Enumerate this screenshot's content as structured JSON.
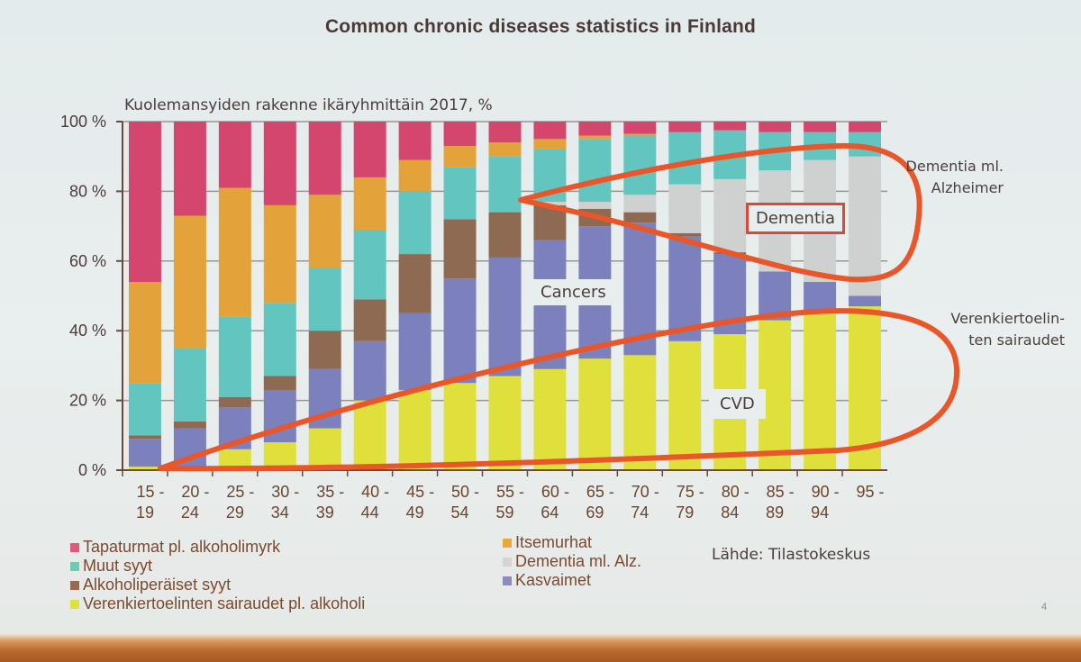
{
  "slide": {
    "title": "Common chronic diseases statistics in Finland",
    "page_number": "4",
    "source": "Lähde: Tilastokeskus"
  },
  "annotations": {
    "dementia_box": "Dementia",
    "cancers": "Cancers",
    "cvd": "CVD",
    "dementia_note_line1": "Dementia ml.",
    "dementia_note_line2": "Alzheimer",
    "cvd_note_line1": "Verenkiertoelin-",
    "cvd_note_line2": "ten sairaudet",
    "highlight_color": "#e8562a"
  },
  "chart_data": {
    "type": "bar",
    "stacked": true,
    "normalized": true,
    "title": "Kuolemansyiden rakenne ikäryhmittäin 2017, %",
    "xlabel": "",
    "ylabel": "",
    "ylim": [
      0,
      100
    ],
    "yticks": [
      "0 %",
      "20 %",
      "40 %",
      "60 %",
      "80 %",
      "100 %"
    ],
    "grid": true,
    "categories": [
      [
        "15 -",
        "19"
      ],
      [
        "20 -",
        "24"
      ],
      [
        "25 -",
        "29"
      ],
      [
        "30 -",
        "34"
      ],
      [
        "35 -",
        "39"
      ],
      [
        "40 -",
        "44"
      ],
      [
        "45 -",
        "49"
      ],
      [
        "50 -",
        "54"
      ],
      [
        "55 -",
        "59"
      ],
      [
        "60 -",
        "64"
      ],
      [
        "65 -",
        "69"
      ],
      [
        "70 -",
        "74"
      ],
      [
        "75 -",
        "79"
      ],
      [
        "80 -",
        "84"
      ],
      [
        "85 -",
        "89"
      ],
      [
        "90 -",
        "94"
      ],
      [
        "95 -",
        ""
      ]
    ],
    "series": [
      {
        "name": "Verenkiertoelinten sairaudet pl. alkoholi",
        "color": "#dfe03c",
        "values": [
          1,
          1,
          6,
          8,
          12,
          20,
          23,
          25,
          27,
          29,
          32,
          33,
          37,
          39,
          43,
          45,
          47
        ]
      },
      {
        "name": "Kasvaimet",
        "color": "#7c80bd",
        "values": [
          8,
          11,
          12,
          15,
          17,
          17,
          22,
          30,
          34,
          37,
          38,
          38,
          30,
          23,
          14,
          9,
          3
        ]
      },
      {
        "name": "Alkoholiperäiset syyt",
        "color": "#8e6a52",
        "values": [
          1,
          2,
          3,
          4,
          11,
          12,
          17,
          17,
          13,
          10,
          5,
          3,
          1,
          0.5,
          0,
          0,
          0
        ]
      },
      {
        "name": "Dementia ml. Alz.",
        "color": "#cfd1d0",
        "values": [
          0,
          0,
          0,
          0,
          0,
          0,
          0,
          0,
          0,
          1,
          2,
          5,
          14,
          21,
          29,
          35,
          40
        ]
      },
      {
        "name": "Muut syyt",
        "color": "#62c5bf",
        "values": [
          15,
          21,
          23,
          21,
          18,
          20,
          18,
          15,
          16,
          15,
          18,
          17,
          15,
          14,
          11,
          8,
          7
        ]
      },
      {
        "name": "Itsemurhat",
        "color": "#e3a23a",
        "values": [
          29,
          38,
          37,
          28,
          21,
          15,
          9,
          6,
          4,
          3,
          1,
          0.5,
          0,
          0,
          0,
          0,
          0
        ]
      },
      {
        "name": "Tapaturmat pl. alkoholimyrk",
        "color": "#d4466d",
        "values": [
          46,
          27,
          19,
          24,
          21,
          16,
          11,
          7,
          6,
          5,
          4,
          3.5,
          3,
          2.5,
          3,
          3,
          3
        ]
      }
    ],
    "legend": {
      "placement": "bottom",
      "column1": [
        {
          "label": "Tapaturmat pl. alkoholimyrk",
          "color": "#e05a78"
        },
        {
          "label": "Muut  syyt",
          "color": "#6fcab5"
        },
        {
          "label": "Alkoholiperäiset syyt",
          "color": "#9a6a50"
        },
        {
          "label": "Verenkiertoelinten sairaudet pl. alkoholi",
          "color": "#e0e03a"
        }
      ],
      "column2": [
        {
          "label": "Itsemurhat",
          "color": "#e8a83a"
        },
        {
          "label": "Dementia ml. Alz.",
          "color": "#d4d4d4"
        },
        {
          "label": "Kasvaimet",
          "color": "#8c8cbc"
        }
      ]
    }
  }
}
